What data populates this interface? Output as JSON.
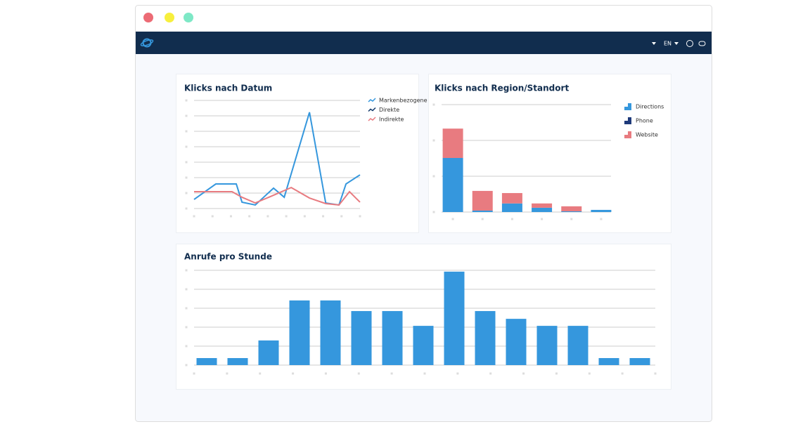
{
  "navbar": {
    "language": "EN"
  },
  "charts": [
    {
      "type": "line",
      "title": "Klicks nach Datum",
      "xlim": [
        0,
        9
      ],
      "xticks": [
        0,
        1,
        2,
        3,
        4,
        5,
        6,
        7,
        8,
        9
      ],
      "ylim": [
        0,
        7
      ],
      "yticks": [
        0,
        1,
        2,
        3,
        4,
        5,
        6,
        7
      ],
      "grid": true,
      "series": [
        {
          "name": "Markenbezogene",
          "color": "#3597dd",
          "x": [
            0,
            1.18,
            2.29,
            2.6,
            3.32,
            4.31,
            4.89,
            6.26,
            7.14,
            7.86,
            8.24,
            9
          ],
          "values": [
            0.59,
            1.59,
            1.59,
            0.41,
            0.23,
            1.32,
            0.73,
            6.23,
            0.36,
            0.23,
            1.59,
            2.18
          ]
        },
        {
          "name": "Direkte",
          "color": "#123a6b",
          "x": [],
          "values": []
        },
        {
          "name": "Indirekte",
          "color": "#e87b80",
          "x": [
            0,
            2.06,
            2.6,
            3.32,
            4.31,
            5.27,
            6.26,
            7.14,
            7.86,
            8.43,
            9
          ],
          "values": [
            1.09,
            1.09,
            0.73,
            0.36,
            0.86,
            1.36,
            0.68,
            0.32,
            0.23,
            1.09,
            0.41
          ]
        }
      ]
    },
    {
      "type": "stacked-bar",
      "title": "Klicks nach Region/Standort",
      "categories": [
        null,
        null,
        null,
        null,
        null,
        null
      ],
      "ylim": [
        0,
        3
      ],
      "yticks": [
        0,
        1,
        2,
        3
      ],
      "grid": true,
      "series": [
        {
          "name": "Directions",
          "color": "#3597dd",
          "values": [
            1.51,
            0.04,
            0.24,
            0.12,
            0.02,
            0.06
          ]
        },
        {
          "name": "Phone",
          "color": "#1e3a7a",
          "values": [
            0,
            0,
            0,
            0,
            0,
            0
          ]
        },
        {
          "name": "Website",
          "color": "#e87b80",
          "values": [
            0.82,
            0.55,
            0.29,
            0.12,
            0.14,
            0
          ]
        }
      ]
    },
    {
      "type": "bar",
      "title": "Anrufe pro Stunde",
      "categories": [
        null,
        null,
        null,
        null,
        null,
        null,
        null,
        null,
        null,
        null,
        null,
        null,
        null,
        null,
        null
      ],
      "ylim": [
        0,
        5
      ],
      "yticks": [
        0,
        1,
        2,
        3,
        4,
        5
      ],
      "grid": true,
      "color": "#3597dd",
      "values": [
        0.37,
        0.37,
        1.3,
        3.41,
        3.41,
        2.85,
        2.85,
        2.07,
        4.93,
        2.85,
        2.44,
        2.07,
        2.07,
        0.37,
        0.37
      ]
    }
  ]
}
